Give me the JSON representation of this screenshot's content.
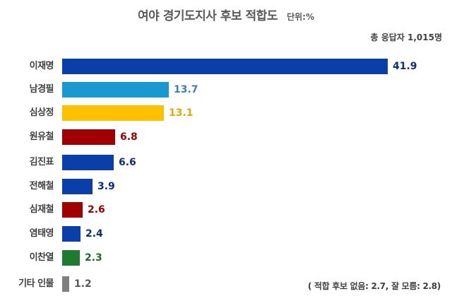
{
  "header": {
    "title": "여야 경기도지사 후보 적합도",
    "unit": "단위:%",
    "respondents": "총 응답자 1,015명"
  },
  "footnote": "( 적합 후보 없음: 2.7, 잘 모름: 2.8)",
  "rows": [
    {
      "label": "이재명",
      "value": "41.9",
      "bar_color": "#0a3ea8",
      "text_color": "#0a2f7a"
    },
    {
      "label": "남경필",
      "value": "13.7",
      "bar_color": "#1a98d0",
      "text_color": "#3a7fb8"
    },
    {
      "label": "심상정",
      "value": "13.1",
      "bar_color": "#ffc000",
      "text_color": "#e6a800"
    },
    {
      "label": "원유철",
      "value": "6.8",
      "bar_color": "#a00000",
      "text_color": "#a00000"
    },
    {
      "label": "김진표",
      "value": "6.6",
      "bar_color": "#0a3ea8",
      "text_color": "#0a2f7a"
    },
    {
      "label": "전해철",
      "value": "3.9",
      "bar_color": "#0a3ea8",
      "text_color": "#0a2f7a"
    },
    {
      "label": "심재철",
      "value": "2.6",
      "bar_color": "#a00000",
      "text_color": "#a00000"
    },
    {
      "label": "염태영",
      "value": "2.4",
      "bar_color": "#0a3ea8",
      "text_color": "#0a2f7a"
    },
    {
      "label": "이찬열",
      "value": "2.3",
      "bar_color": "#1e7b30",
      "text_color": "#1e6b2a"
    },
    {
      "label": "기타 인물",
      "value": "1.2",
      "bar_color": "#7f7f7f",
      "text_color": "#595959"
    }
  ],
  "chart_data": {
    "type": "bar",
    "orientation": "horizontal",
    "title": "여야 경기도지사 후보 적합도",
    "subtitle": "단위:%",
    "annotation": "총 응답자 1,015명",
    "footnote": "( 적합 후보 없음: 2.7, 잘 모름: 2.8)",
    "categories": [
      "이재명",
      "남경필",
      "심상정",
      "원유철",
      "김진표",
      "전해철",
      "심재철",
      "염태영",
      "이찬열",
      "기타 인물"
    ],
    "values": [
      41.9,
      13.7,
      13.1,
      6.8,
      6.6,
      3.9,
      2.6,
      2.4,
      2.3,
      1.2
    ],
    "colors": [
      "#0a3ea8",
      "#1a98d0",
      "#ffc000",
      "#a00000",
      "#0a3ea8",
      "#0a3ea8",
      "#a00000",
      "#0a3ea8",
      "#1e7b30",
      "#7f7f7f"
    ],
    "xlabel": "",
    "ylabel": "",
    "xlim": [
      0,
      42
    ],
    "grid": false,
    "legend": "none"
  }
}
